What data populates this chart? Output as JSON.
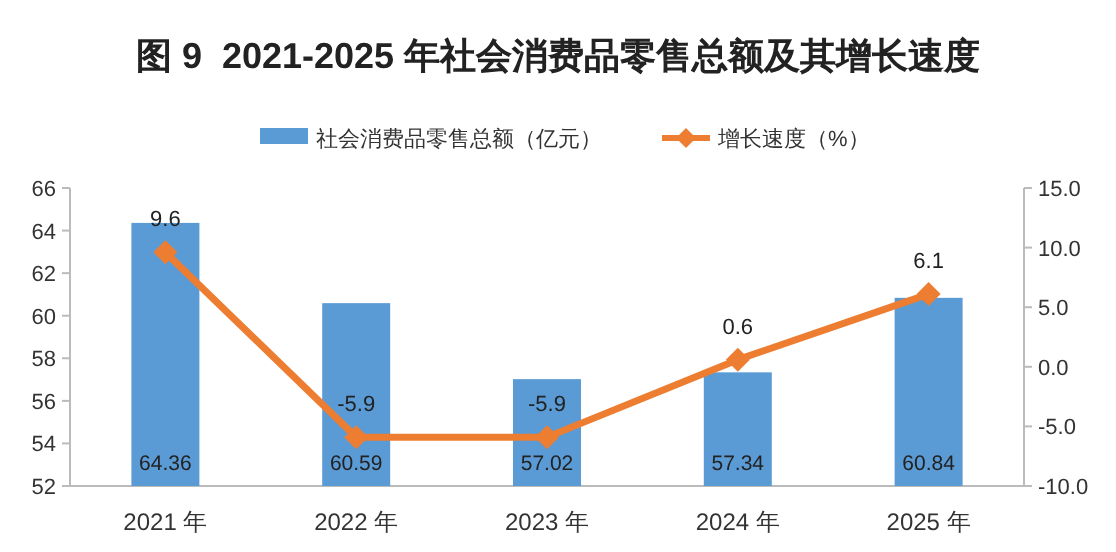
{
  "chart_data": {
    "type": "bar",
    "title": "图 9  2021-2025 年社会消费品零售总额及其增长速度",
    "categories": [
      "2021 年",
      "2022 年",
      "2023 年",
      "2024 年",
      "2025 年"
    ],
    "series": [
      {
        "name": "社会消费品零售总额（亿元）",
        "color": "#5b9bd5",
        "values": [
          64.36,
          60.59,
          57.02,
          57.34,
          60.84
        ]
      },
      {
        "name": "增长速度（%）",
        "type": "line",
        "axis": "y2",
        "color": "#ed7d31",
        "marker": "diamond",
        "values": [
          9.6,
          -5.9,
          -5.9,
          0.6,
          6.1
        ]
      }
    ],
    "ylim": [
      52,
      66
    ],
    "yticks": [
      52,
      54,
      56,
      58,
      60,
      62,
      64,
      66
    ],
    "y2lim": [
      -10,
      15
    ],
    "y2ticks": [
      {
        "value": -10,
        "label": "-10.0"
      },
      {
        "value": -5,
        "label": "-5.0"
      },
      {
        "value": 0,
        "label": "0.0"
      },
      {
        "value": 5,
        "label": "5.0"
      },
      {
        "value": 10,
        "label": "10.0"
      },
      {
        "value": 15,
        "label": "15.0"
      }
    ],
    "data_labels": true,
    "legend": "top",
    "grid": false
  }
}
